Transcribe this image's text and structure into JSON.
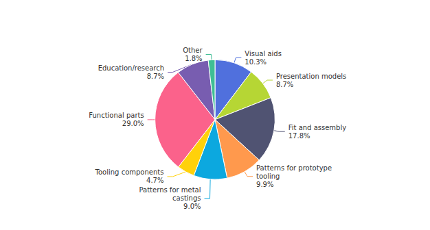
{
  "chart_data": {
    "type": "pie",
    "categories": [
      "Visual aids",
      "Presentation models",
      "Fit and assembly",
      "Patterns for prototype\ntooling",
      "Patterns for metal\ncastings",
      "Tooling components",
      "Functional parts",
      "Education/research",
      "Other"
    ],
    "values": [
      10.3,
      8.7,
      17.8,
      9.9,
      9.0,
      4.7,
      29.0,
      8.7,
      1.8
    ],
    "value_labels": [
      "10.3%",
      "8.7%",
      "17.8%",
      "9.9%",
      "9.0%",
      "4.7%",
      "29.0%",
      "8.7%",
      "1.8%"
    ],
    "data_labels": true
  }
}
